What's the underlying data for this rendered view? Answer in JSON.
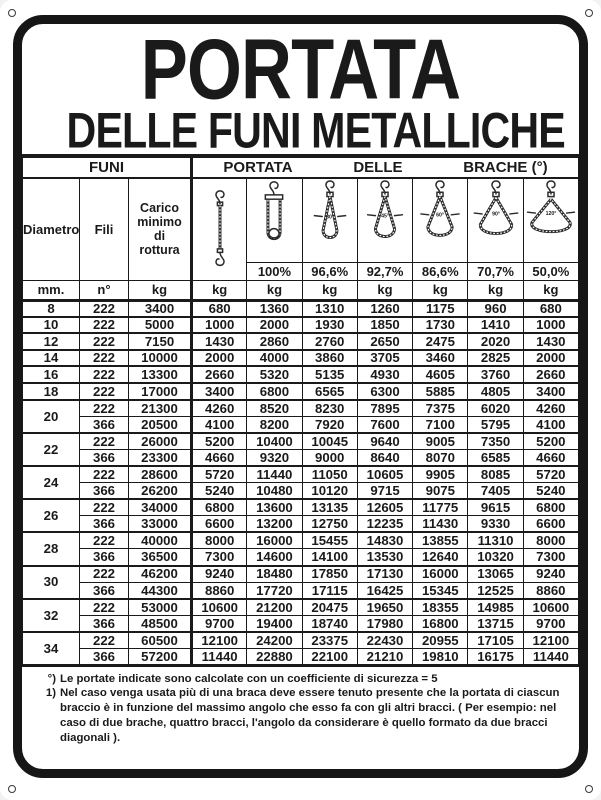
{
  "sign": {
    "title_line1": "PORTATA",
    "title_line2": "DELLE FUNI METALLICHE"
  },
  "table": {
    "group_funi": "FUNI",
    "group_portata": [
      "PORTATA",
      "DELLE",
      "BRACHE (°)"
    ],
    "col_diametro": "Diametro",
    "col_fili": "Fili",
    "col_carico": "Carico\nminimo\ndi\nrottura",
    "units": [
      "mm.",
      "n°",
      "kg",
      "kg",
      "kg",
      "kg",
      "kg",
      "kg",
      "kg",
      "kg"
    ],
    "sling_columns": [
      {
        "icon": "single-leg-sling-icon",
        "percent": "",
        "angle": ""
      },
      {
        "icon": "two-leg-basket-sling-icon",
        "percent": "100%",
        "angle": ""
      },
      {
        "icon": "two-leg-sling-30deg-icon",
        "percent": "96,6%",
        "angle": "30°"
      },
      {
        "icon": "two-leg-sling-45deg-icon",
        "percent": "92,7%",
        "angle": "45°"
      },
      {
        "icon": "two-leg-sling-60deg-icon",
        "percent": "86,6%",
        "angle": "60°"
      },
      {
        "icon": "two-leg-sling-90deg-icon",
        "percent": "70,7%",
        "angle": "90°"
      },
      {
        "icon": "two-leg-sling-120deg-icon",
        "percent": "50,0%",
        "angle": "120°"
      }
    ],
    "row_groups": [
      {
        "diametro": "8",
        "rows": [
          [
            "222",
            "3400",
            "680",
            "1360",
            "1310",
            "1260",
            "1175",
            "960",
            "680"
          ]
        ]
      },
      {
        "diametro": "10",
        "rows": [
          [
            "222",
            "5000",
            "1000",
            "2000",
            "1930",
            "1850",
            "1730",
            "1410",
            "1000"
          ]
        ]
      },
      {
        "diametro": "12",
        "rows": [
          [
            "222",
            "7150",
            "1430",
            "2860",
            "2760",
            "2650",
            "2475",
            "2020",
            "1430"
          ]
        ]
      },
      {
        "diametro": "14",
        "rows": [
          [
            "222",
            "10000",
            "2000",
            "4000",
            "3860",
            "3705",
            "3460",
            "2825",
            "2000"
          ]
        ]
      },
      {
        "diametro": "16",
        "rows": [
          [
            "222",
            "13300",
            "2660",
            "5320",
            "5135",
            "4930",
            "4605",
            "3760",
            "2660"
          ]
        ]
      },
      {
        "diametro": "18",
        "rows": [
          [
            "222",
            "17000",
            "3400",
            "6800",
            "6565",
            "6300",
            "5885",
            "4805",
            "3400"
          ]
        ]
      },
      {
        "diametro": "20",
        "rows": [
          [
            "222",
            "21300",
            "4260",
            "8520",
            "8230",
            "7895",
            "7375",
            "6020",
            "4260"
          ],
          [
            "366",
            "20500",
            "4100",
            "8200",
            "7920",
            "7600",
            "7100",
            "5795",
            "4100"
          ]
        ]
      },
      {
        "diametro": "22",
        "rows": [
          [
            "222",
            "26000",
            "5200",
            "10400",
            "10045",
            "9640",
            "9005",
            "7350",
            "5200"
          ],
          [
            "366",
            "23300",
            "4660",
            "9320",
            "9000",
            "8640",
            "8070",
            "6585",
            "4660"
          ]
        ]
      },
      {
        "diametro": "24",
        "rows": [
          [
            "222",
            "28600",
            "5720",
            "11440",
            "11050",
            "10605",
            "9905",
            "8085",
            "5720"
          ],
          [
            "366",
            "26200",
            "5240",
            "10480",
            "10120",
            "9715",
            "9075",
            "7405",
            "5240"
          ]
        ]
      },
      {
        "diametro": "26",
        "rows": [
          [
            "222",
            "34000",
            "6800",
            "13600",
            "13135",
            "12605",
            "11775",
            "9615",
            "6800"
          ],
          [
            "366",
            "33000",
            "6600",
            "13200",
            "12750",
            "12235",
            "11430",
            "9330",
            "6600"
          ]
        ]
      },
      {
        "diametro": "28",
        "rows": [
          [
            "222",
            "40000",
            "8000",
            "16000",
            "15455",
            "14830",
            "13855",
            "11310",
            "8000"
          ],
          [
            "366",
            "36500",
            "7300",
            "14600",
            "14100",
            "13530",
            "12640",
            "10320",
            "7300"
          ]
        ]
      },
      {
        "diametro": "30",
        "rows": [
          [
            "222",
            "46200",
            "9240",
            "18480",
            "17850",
            "17130",
            "16000",
            "13065",
            "9240"
          ],
          [
            "366",
            "44300",
            "8860",
            "17720",
            "17115",
            "16425",
            "15345",
            "12525",
            "8860"
          ]
        ]
      },
      {
        "diametro": "32",
        "rows": [
          [
            "222",
            "53000",
            "10600",
            "21200",
            "20475",
            "19650",
            "18355",
            "14985",
            "10600"
          ],
          [
            "366",
            "48500",
            "9700",
            "19400",
            "18740",
            "17980",
            "16800",
            "13715",
            "9700"
          ]
        ]
      },
      {
        "diametro": "34",
        "rows": [
          [
            "222",
            "60500",
            "12100",
            "24200",
            "23375",
            "22430",
            "20955",
            "17105",
            "12100"
          ],
          [
            "366",
            "57200",
            "11440",
            "22880",
            "22100",
            "21210",
            "19810",
            "16175",
            "11440"
          ]
        ]
      }
    ]
  },
  "footnotes": [
    {
      "marker": "°)",
      "text": "Le portate indicate sono calcolate con un coefficiente di sicurezza = 5"
    },
    {
      "marker": "1)",
      "text": "Nel caso venga usata più di una braca deve essere tenuto presente che la portata di ciascun braccio è in funzione del massimo angolo che esso fa con gli altri bracci. ( Per esempio: nel caso di due brache, quattro bracci, l'angolo da considerare è quello formato da due bracci diagonali )."
    }
  ],
  "colors": {
    "ink": "#1a1a1a",
    "background": "#ffffff"
  }
}
